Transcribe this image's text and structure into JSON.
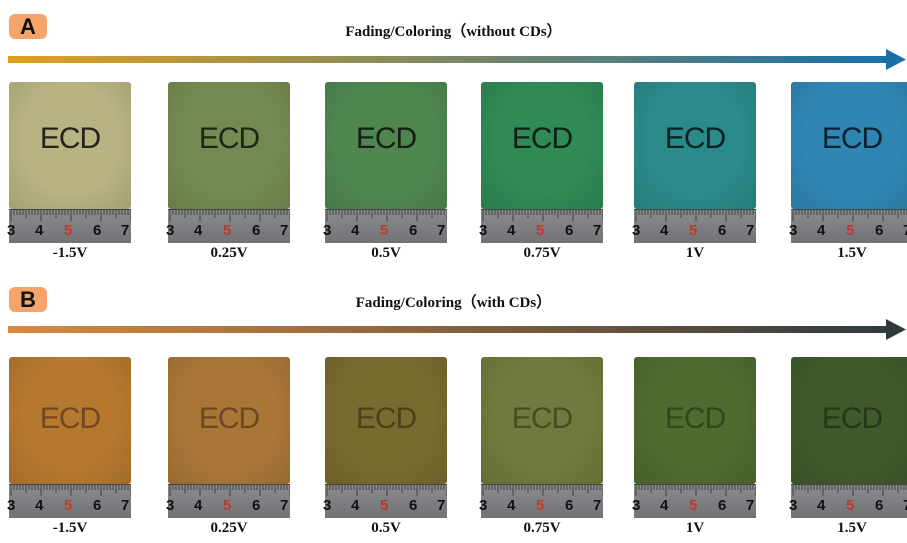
{
  "panels": [
    {
      "badge": "A",
      "title": "Fading/Coloring（without CDs）",
      "arrow_from": "#e0a020",
      "arrow_to": "#1a6fa8",
      "samples": [
        {
          "voltage": "-1.5V",
          "label": "ECD",
          "color": "#b7b383",
          "text_color": "#242418"
        },
        {
          "voltage": "0.25V",
          "label": "ECD",
          "color": "#758a52",
          "text_color": "#1f2614"
        },
        {
          "voltage": "0.5V",
          "label": "ECD",
          "color": "#4f8650",
          "text_color": "#142014"
        },
        {
          "voltage": "0.75V",
          "label": "ECD",
          "color": "#2f8a55",
          "text_color": "#0f2016"
        },
        {
          "voltage": "1V",
          "label": "ECD",
          "color": "#2b8a8a",
          "text_color": "#0c2024"
        },
        {
          "voltage": "1.5V",
          "label": "ECD",
          "color": "#2f86b3",
          "text_color": "#0d2030"
        }
      ],
      "ruler_numbers": [
        "3",
        "4",
        "5",
        "6",
        "7"
      ]
    },
    {
      "badge": "B",
      "title": "Fading/Coloring（with CDs）",
      "arrow_from": "#d98a3d",
      "arrow_to": "#2f3a3f",
      "samples": [
        {
          "voltage": "-1.5V",
          "label": "ECD",
          "color": "#b6782f",
          "text_color": "#5a3a1c"
        },
        {
          "voltage": "0.25V",
          "label": "ECD",
          "color": "#a97637",
          "text_color": "#56391d"
        },
        {
          "voltage": "0.5V",
          "label": "ECD",
          "color": "#7a6a30",
          "text_color": "#3e3415"
        },
        {
          "voltage": "0.75V",
          "label": "ECD",
          "color": "#6f7a3c",
          "text_color": "#393f1e"
        },
        {
          "voltage": "1V",
          "label": "ECD",
          "color": "#4e6b30",
          "text_color": "#2a3a18"
        },
        {
          "voltage": "1.5V",
          "label": "ECD",
          "color": "#3f5a2c",
          "text_color": "#1e2c15"
        }
      ],
      "ruler_numbers": [
        "3",
        "4",
        "5",
        "6",
        "7"
      ]
    }
  ]
}
